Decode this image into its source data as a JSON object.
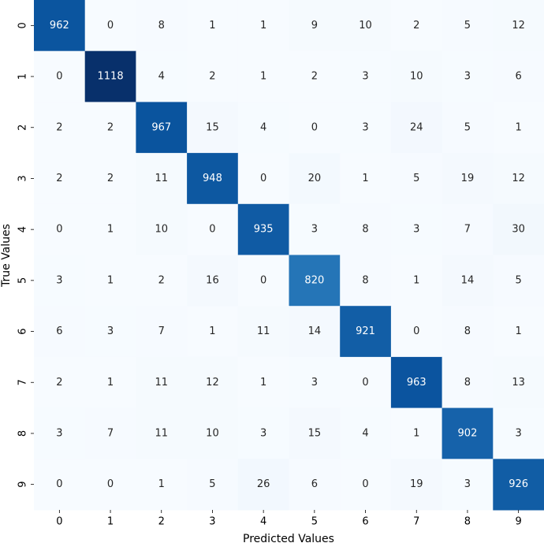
{
  "chart_data": {
    "type": "heatmap",
    "xlabel": "Predicted Values",
    "ylabel": "True Values",
    "x_categories": [
      "0",
      "1",
      "2",
      "3",
      "4",
      "5",
      "6",
      "7",
      "8",
      "9"
    ],
    "y_categories": [
      "0",
      "1",
      "2",
      "3",
      "4",
      "5",
      "6",
      "7",
      "8",
      "9"
    ],
    "colormap": "Blues",
    "values": [
      [
        962,
        0,
        8,
        1,
        1,
        9,
        10,
        2,
        5,
        12
      ],
      [
        0,
        1118,
        4,
        2,
        1,
        2,
        3,
        10,
        3,
        6
      ],
      [
        2,
        2,
        967,
        15,
        4,
        0,
        3,
        24,
        5,
        1
      ],
      [
        2,
        2,
        11,
        948,
        0,
        20,
        1,
        5,
        19,
        12
      ],
      [
        0,
        1,
        10,
        0,
        935,
        3,
        8,
        3,
        7,
        30
      ],
      [
        3,
        1,
        2,
        16,
        0,
        820,
        8,
        1,
        14,
        5
      ],
      [
        6,
        3,
        7,
        1,
        11,
        14,
        921,
        0,
        8,
        1
      ],
      [
        2,
        1,
        11,
        12,
        1,
        3,
        0,
        963,
        8,
        13
      ],
      [
        3,
        7,
        11,
        10,
        3,
        15,
        4,
        1,
        902,
        3
      ],
      [
        0,
        0,
        1,
        5,
        26,
        6,
        0,
        19,
        3,
        926
      ]
    ]
  }
}
